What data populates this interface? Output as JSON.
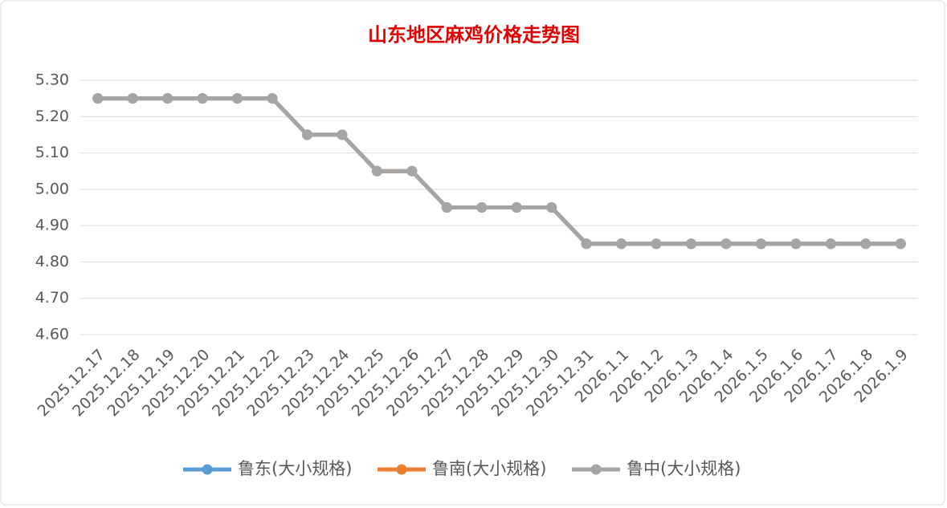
{
  "chart_data": {
    "type": "line",
    "title": "山东地区麻鸡价格走势图",
    "categories": [
      "2025.12.17",
      "2025.12.18",
      "2025.12.19",
      "2025.12.20",
      "2025.12.21",
      "2025.12.22",
      "2025.12.23",
      "2025.12.24",
      "2025.12.25",
      "2025.12.26",
      "2025.12.27",
      "2025.12.28",
      "2025.12.29",
      "2025.12.30",
      "2025.12.31",
      "2026.1.1",
      "2026.1.2",
      "2026.1.3",
      "2026.1.4",
      "2026.1.5",
      "2026.1.6",
      "2026.1.7",
      "2026.1.8",
      "2026.1.9"
    ],
    "series": [
      {
        "name": "鲁东(大小规格)",
        "color": "#5b9bd5",
        "values": [
          5.25,
          5.25,
          5.25,
          5.25,
          5.25,
          5.25,
          5.15,
          5.15,
          5.05,
          5.05,
          4.95,
          4.95,
          4.95,
          4.95,
          4.85,
          4.85,
          4.85,
          4.85,
          4.85,
          4.85,
          4.85,
          4.85,
          4.85,
          4.85
        ]
      },
      {
        "name": "鲁南(大小规格)",
        "color": "#ed7d31",
        "values": [
          5.25,
          5.25,
          5.25,
          5.25,
          5.25,
          5.25,
          5.15,
          5.15,
          5.05,
          5.05,
          4.95,
          4.95,
          4.95,
          4.95,
          4.85,
          4.85,
          4.85,
          4.85,
          4.85,
          4.85,
          4.85,
          4.85,
          4.85,
          4.85
        ]
      },
      {
        "name": "鲁中(大小规格)",
        "color": "#a5a5a5",
        "values": [
          5.25,
          5.25,
          5.25,
          5.25,
          5.25,
          5.25,
          5.15,
          5.15,
          5.05,
          5.05,
          4.95,
          4.95,
          4.95,
          4.95,
          4.85,
          4.85,
          4.85,
          4.85,
          4.85,
          4.85,
          4.85,
          4.85,
          4.85,
          4.85
        ]
      }
    ],
    "ylim": [
      4.6,
      5.3
    ],
    "yticks": [
      {
        "value": 4.6,
        "label": "4.60"
      },
      {
        "value": 4.7,
        "label": "4.70"
      },
      {
        "value": 4.8,
        "label": "4.80"
      },
      {
        "value": 4.9,
        "label": "4.90"
      },
      {
        "value": 5.0,
        "label": "5.00"
      },
      {
        "value": 5.1,
        "label": "5.10"
      },
      {
        "value": 5.2,
        "label": "5.20"
      },
      {
        "value": 5.3,
        "label": "5.30"
      }
    ],
    "grid": true,
    "legend": "bottom"
  }
}
